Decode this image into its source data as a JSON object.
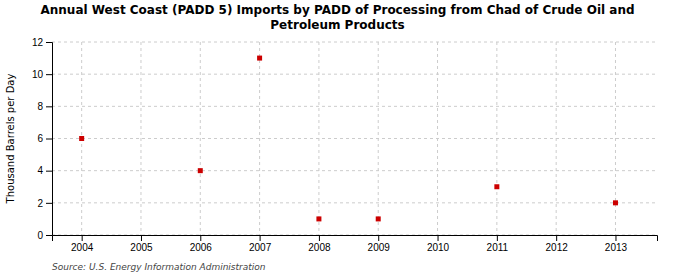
{
  "chart_data": {
    "type": "scatter",
    "title": "Annual West Coast (PADD 5) Imports by PADD of Processing from Chad of Crude Oil and\nPetroleum Products",
    "y_label": "Thousand Barrels per Day",
    "annotations": [
      "Source: U.S. Energy Information Administration"
    ],
    "x": [
      2004,
      2006,
      2007,
      2008,
      2009,
      2011,
      2013
    ],
    "values": [
      6,
      4,
      11,
      1,
      1,
      3,
      2
    ],
    "color": "#cc0000",
    "marker": "square",
    "xlim": [
      2003.5,
      2013.7
    ],
    "xticks": [
      2004,
      2005,
      2006,
      2007,
      2008,
      2009,
      2010,
      2011,
      2012,
      2013
    ],
    "ylim": [
      0,
      12
    ],
    "yticks": [
      0,
      2,
      4,
      6,
      8,
      10,
      12
    ],
    "grid": true
  }
}
